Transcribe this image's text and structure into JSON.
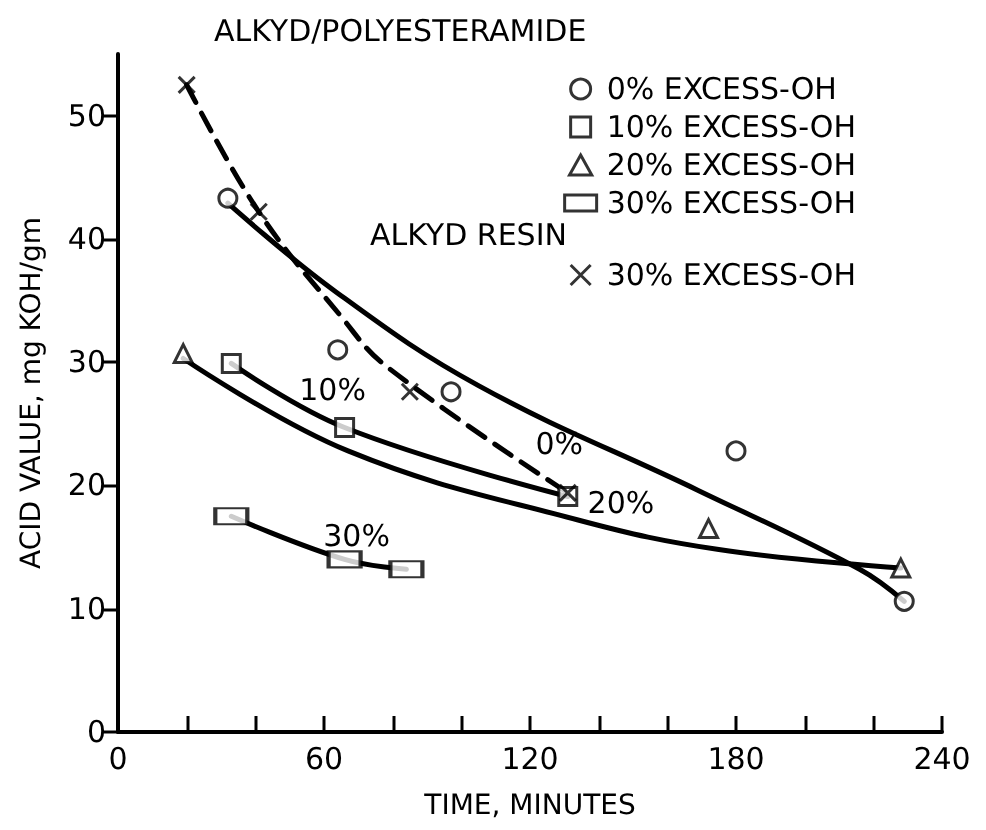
{
  "chart_data": {
    "type": "scatter",
    "xlabel": "TIME, MINUTES",
    "ylabel": "ACID VALUE, mg KOH/gm",
    "legend_title": "ALKYD/POLYESTERAMIDE",
    "legend": "top right",
    "grid": false,
    "xlim": [
      0,
      240
    ],
    "xticks": [
      0,
      {
        "value": 20,
        "label": null
      },
      {
        "value": 40,
        "label": null
      },
      60,
      {
        "value": 80,
        "label": null
      },
      {
        "value": 100,
        "label": null
      },
      120,
      {
        "value": 140,
        "label": null
      },
      {
        "value": 160,
        "label": null
      },
      180,
      {
        "value": 200,
        "label": null
      },
      {
        "value": 220,
        "label": null
      },
      240
    ],
    "ylim": [
      0,
      55
    ],
    "yticks": [
      0,
      10,
      20,
      30,
      40,
      50
    ],
    "annotations": [
      "ALKYD RESIN",
      {
        "text": "0%",
        "x": 125,
        "y": 25.4
      },
      {
        "text": "10%",
        "x": 59,
        "y": 25.9
      },
      {
        "text": "20%",
        "x": 143,
        "y": 16.7
      },
      {
        "text": "30%",
        "x": 66,
        "y": 14
      }
    ],
    "series": [
      {
        "name": "0% EXCESS-OH",
        "color": "#000000",
        "marker": "circle",
        "x": [
          32,
          64,
          97,
          180,
          229
        ],
        "values": [
          43.3,
          31,
          27.6,
          22.8,
          10.6
        ]
      },
      {
        "name": "10% EXCESS-OH",
        "color": "#000000",
        "marker": "square",
        "x": [
          33,
          66,
          131
        ],
        "values": [
          29.9,
          24.7,
          19.1
        ]
      },
      {
        "name": "20% EXCESS-OH",
        "color": "#000000",
        "marker": "triangle",
        "x": [
          19,
          172,
          228
        ],
        "values": [
          30.7,
          16.5,
          13.3
        ]
      },
      {
        "name": "30% EXCESS-OH",
        "color": "#000000",
        "marker": "square",
        "x": [
          33,
          66,
          84
        ],
        "values": [
          17.5,
          14,
          13.2
        ]
      },
      {
        "name": "30% EXCESS-OH",
        "color": "#000000",
        "marker": "cross",
        "x": [
          20,
          41,
          85,
          131
        ],
        "values": [
          52.5,
          42.2,
          27.6,
          19.4
        ]
      },
      {
        "type": "line",
        "color": "#000000",
        "line_style": "solid",
        "marker": "none",
        "x": [
          32,
          63,
          105,
          169,
          216,
          229
        ],
        "values": [
          42.9,
          35.8,
          28.1,
          19.6,
          13.2,
          10.6
        ]
      },
      {
        "type": "line",
        "color": "#000000",
        "line_style": "solid",
        "marker": "none",
        "x": [
          33,
          66,
          131
        ],
        "values": [
          29.9,
          24.7,
          19.1
        ]
      },
      {
        "type": "line",
        "color": "#000000",
        "line_style": "solid",
        "marker": "none",
        "x": [
          19,
          67,
          134,
          175,
          228
        ],
        "values": [
          30.3,
          22.8,
          17.2,
          14.8,
          13.3
        ]
      },
      {
        "type": "line",
        "color": "#000000",
        "line_style": "solid",
        "marker": "none",
        "x": [
          33,
          66,
          84
        ],
        "values": [
          17.5,
          14,
          13.2
        ]
      },
      {
        "type": "line",
        "color": "#000000",
        "line_style": "dashed",
        "marker": "none",
        "x": [
          20,
          41,
          65,
          78,
          131
        ],
        "values": [
          52.5,
          42.2,
          33.7,
          29.7,
          19.4
        ]
      }
    ]
  }
}
